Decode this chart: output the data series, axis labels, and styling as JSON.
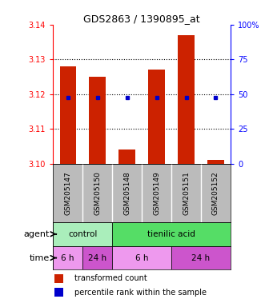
{
  "title": "GDS2863 / 1390895_at",
  "samples": [
    "GSM205147",
    "GSM205150",
    "GSM205148",
    "GSM205149",
    "GSM205151",
    "GSM205152"
  ],
  "bar_values": [
    3.128,
    3.125,
    3.104,
    3.127,
    3.137,
    3.101
  ],
  "bar_bottom": 3.1,
  "percentile_values": [
    3.119,
    3.119,
    3.119,
    3.119,
    3.119,
    3.119
  ],
  "ylim": [
    3.1,
    3.14
  ],
  "yticks_left": [
    3.1,
    3.11,
    3.12,
    3.13,
    3.14
  ],
  "yticks_right": [
    0,
    25,
    50,
    75,
    100
  ],
  "yticks_right_vals": [
    3.1,
    3.11,
    3.12,
    3.13,
    3.14
  ],
  "bar_color": "#cc2200",
  "percentile_color": "#0000cc",
  "agent_groups": [
    {
      "label": "control",
      "start": 0,
      "end": 2,
      "color": "#aaeebb"
    },
    {
      "label": "tienilic acid",
      "start": 2,
      "end": 6,
      "color": "#55dd66"
    }
  ],
  "time_groups": [
    {
      "label": "6 h",
      "start": 0,
      "end": 1,
      "color": "#ee99ee"
    },
    {
      "label": "24 h",
      "start": 1,
      "end": 2,
      "color": "#cc55cc"
    },
    {
      "label": "6 h",
      "start": 2,
      "end": 4,
      "color": "#ee99ee"
    },
    {
      "label": "24 h",
      "start": 4,
      "end": 6,
      "color": "#cc55cc"
    }
  ],
  "legend_bar_color": "#cc2200",
  "legend_percentile_color": "#0000cc",
  "background_color": "#ffffff",
  "plot_bg_color": "#ffffff",
  "label_row_bg": "#bbbbbb"
}
